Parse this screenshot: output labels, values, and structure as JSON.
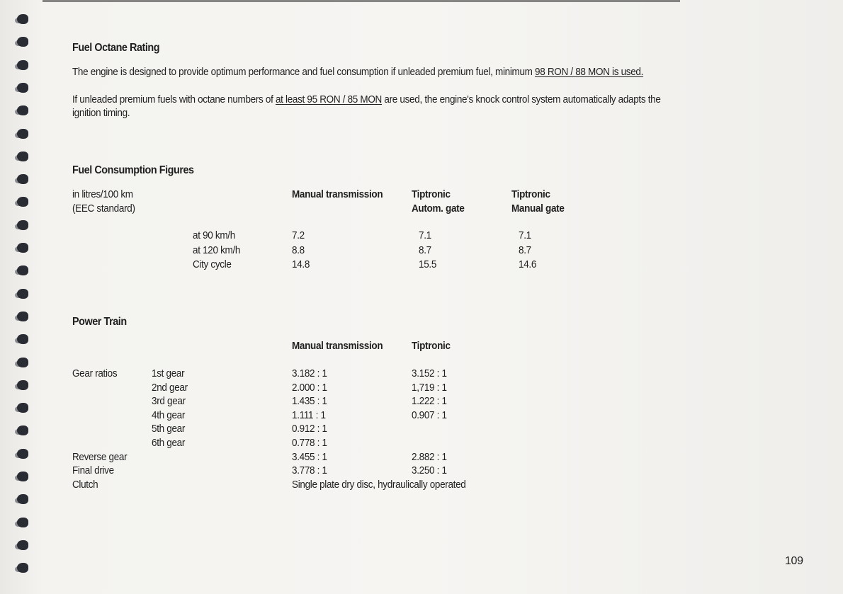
{
  "octane": {
    "title": "Fuel Octane Rating",
    "para1_pre": "The engine is designed to provide optimum performance and fuel consumption if unleaded premium fuel, minimum ",
    "para1_u": "98 RON / 88 MON is used.",
    "para2_pre": "If unleaded premium fuels with octane numbers of ",
    "para2_u": "at least 95 RON / 85 MON",
    "para2_post": " are used, the engine's knock control system automatically adapts the",
    "para2_line2": "ignition timing."
  },
  "consumption": {
    "title": "Fuel Consumption Figures",
    "unit_line1": "in litres/100 km",
    "unit_line2": "(EEC standard)",
    "headers": [
      "Manual transmission",
      "Tiptronic",
      "Tiptronic"
    ],
    "headers_line2": [
      "",
      "Autom. gate",
      "Manual gate"
    ],
    "rows": [
      {
        "label": "at 90 km/h",
        "values": [
          "7.2",
          "7.1",
          "7.1"
        ]
      },
      {
        "label": "at 120 km/h",
        "values": [
          "8.8",
          "8.7",
          "8.7"
        ]
      },
      {
        "label": "City cycle",
        "values": [
          "14.8",
          "15.5",
          "14.6"
        ]
      }
    ]
  },
  "power_train": {
    "title": "Power Train",
    "headers": [
      "Manual transmission",
      "Tiptronic"
    ],
    "rows": [
      {
        "label": "Gear ratios",
        "sub": "1st gear",
        "manual": "3.182 : 1",
        "tiptronic": "3.152 : 1"
      },
      {
        "label": "",
        "sub": "2nd gear",
        "manual": "2.000 : 1",
        "tiptronic": "1,719 : 1"
      },
      {
        "label": "",
        "sub": "3rd gear",
        "manual": "1.435 : 1",
        "tiptronic": "1.222 : 1"
      },
      {
        "label": "",
        "sub": "4th gear",
        "manual": "1.111 : 1",
        "tiptronic": "0.907 : 1"
      },
      {
        "label": "",
        "sub": "5th gear",
        "manual": "0.912 : 1",
        "tiptronic": ""
      },
      {
        "label": "",
        "sub": "6th gear",
        "manual": "0.778 : 1",
        "tiptronic": ""
      },
      {
        "label": "Reverse gear",
        "sub": "",
        "manual": "3.455 : 1",
        "tiptronic": "2.882 : 1"
      },
      {
        "label": "Final drive",
        "sub": "",
        "manual": "3.778 : 1",
        "tiptronic": "3.250 : 1"
      },
      {
        "label": "Clutch",
        "sub": "",
        "manual": "Single plate dry disc, hydraulically operated",
        "tiptronic": ""
      }
    ]
  },
  "page_number": "109"
}
